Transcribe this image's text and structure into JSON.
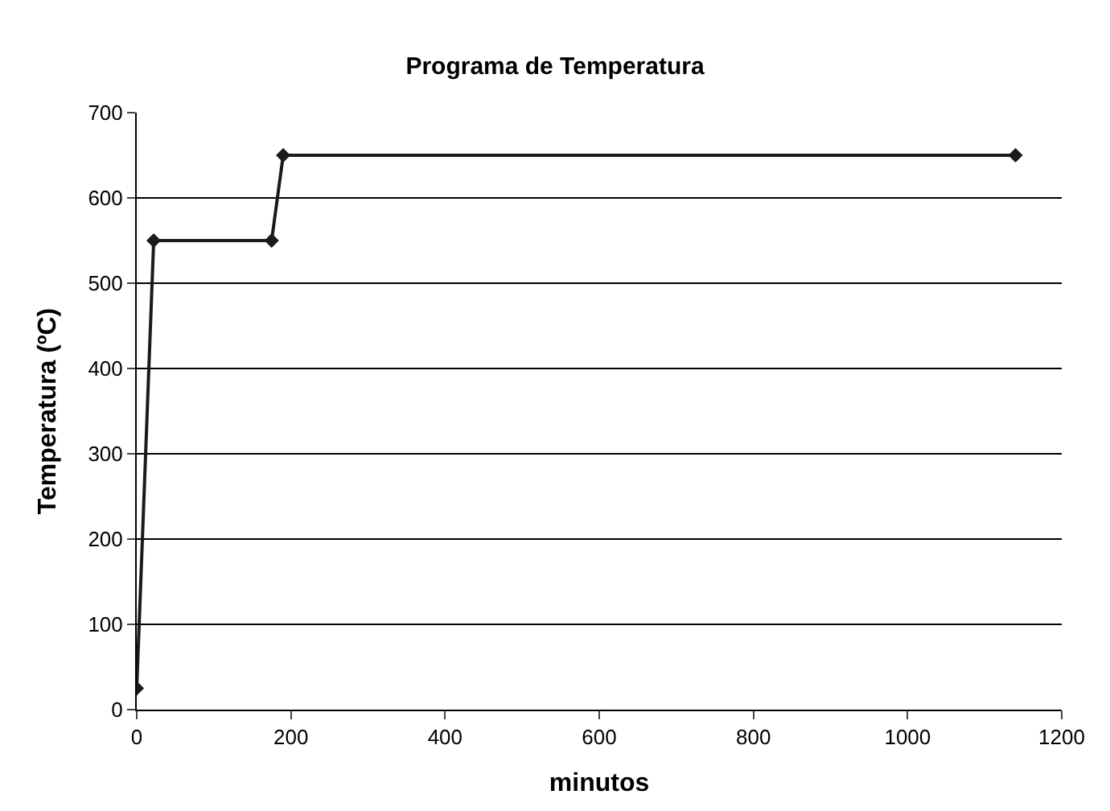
{
  "chart_data": {
    "type": "line",
    "title": "Programa de Temperatura",
    "xlabel": "minutos",
    "ylabel": "Temperatura (ºC)",
    "x": [
      0,
      22,
      175,
      190,
      1140
    ],
    "series": [
      {
        "color": "#1a1a1a",
        "values": [
          25,
          550,
          550,
          650,
          650
        ]
      }
    ],
    "xlim": [
      0,
      1200
    ],
    "xticks": [
      0,
      200,
      400,
      600,
      800,
      1000,
      1200
    ],
    "ylim": [
      0,
      700
    ],
    "yticks": [
      0,
      100,
      200,
      300,
      400,
      500,
      600,
      700
    ],
    "grid": "y",
    "marker": "diamond",
    "line_style": "solid"
  }
}
